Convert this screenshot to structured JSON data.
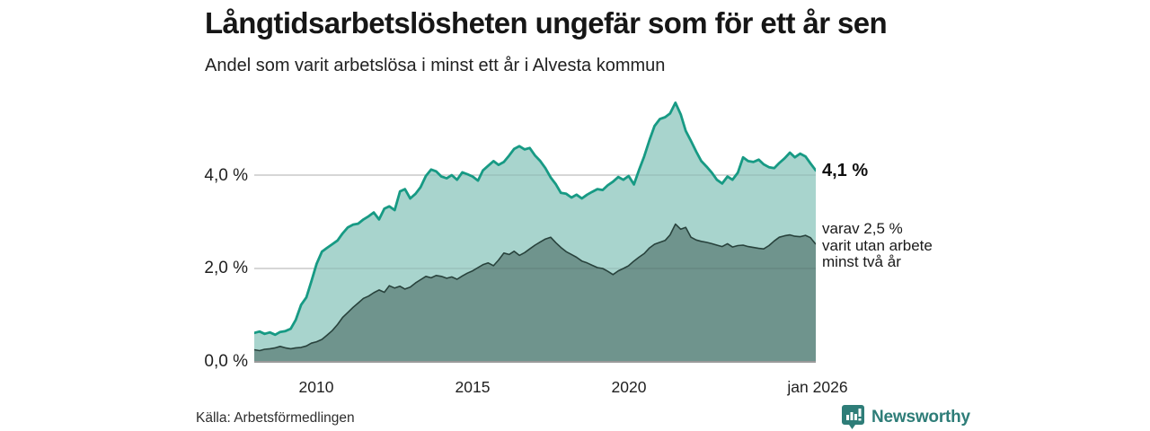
{
  "header": {
    "title": "Långtidsarbetslösheten ungefär som för ett år sen",
    "subtitle": "Andel som varit arbetslösa i minst ett år i Alvesta kommun"
  },
  "footer": {
    "source": "Källa: Arbetsförmedlingen",
    "brand": "Newsworthy",
    "brand_color": "#2e7d78"
  },
  "chart_data": {
    "type": "area",
    "title": "Långtidsarbetslösheten ungefär som för ett år sen",
    "subtitle": "Andel som varit arbetslösa i minst ett år i Alvesta kommun",
    "x_unit": "decimal_year",
    "x_range": [
      2008.0,
      2026.0
    ],
    "ylim": [
      0,
      5.9
    ],
    "grid": "horizontal",
    "colors": {
      "line_total": "#179a84",
      "fill_total": "#a8d4cd",
      "line_two_years": "#28423c",
      "fill_two_years": "#6f948d",
      "gridline": "#dcdcdc",
      "baseline": "#9a9a9a"
    },
    "yticks": [
      {
        "value": 0,
        "label": "0,0 %"
      },
      {
        "value": 2,
        "label": "2,0 %"
      },
      {
        "value": 4,
        "label": "4,0 %"
      }
    ],
    "xticks": [
      {
        "value": 2010,
        "label": "2010"
      },
      {
        "value": 2015,
        "label": "2015"
      },
      {
        "value": 2020,
        "label": "2020"
      },
      {
        "value": 2026,
        "label": "jan 2026"
      }
    ],
    "annotations": {
      "total_end_label": "4,1 %",
      "secondary_lines": [
        "varav 2,5 %",
        "varit utan arbete",
        "minst två år"
      ]
    },
    "series": [
      {
        "name": "Arbetslösa minst ett år",
        "end_value": 4.1,
        "points": [
          [
            2008.0,
            0.62
          ],
          [
            2008.17,
            0.65
          ],
          [
            2008.33,
            0.6
          ],
          [
            2008.5,
            0.63
          ],
          [
            2008.67,
            0.58
          ],
          [
            2008.83,
            0.64
          ],
          [
            2009.0,
            0.66
          ],
          [
            2009.17,
            0.71
          ],
          [
            2009.33,
            0.9
          ],
          [
            2009.5,
            1.22
          ],
          [
            2009.67,
            1.38
          ],
          [
            2009.83,
            1.72
          ],
          [
            2010.0,
            2.1
          ],
          [
            2010.17,
            2.36
          ],
          [
            2010.33,
            2.44
          ],
          [
            2010.5,
            2.52
          ],
          [
            2010.67,
            2.6
          ],
          [
            2010.83,
            2.75
          ],
          [
            2011.0,
            2.88
          ],
          [
            2011.17,
            2.94
          ],
          [
            2011.33,
            2.96
          ],
          [
            2011.5,
            3.05
          ],
          [
            2011.67,
            3.12
          ],
          [
            2011.83,
            3.2
          ],
          [
            2012.0,
            3.05
          ],
          [
            2012.17,
            3.28
          ],
          [
            2012.33,
            3.33
          ],
          [
            2012.5,
            3.25
          ],
          [
            2012.67,
            3.65
          ],
          [
            2012.83,
            3.7
          ],
          [
            2013.0,
            3.5
          ],
          [
            2013.17,
            3.6
          ],
          [
            2013.33,
            3.74
          ],
          [
            2013.5,
            3.98
          ],
          [
            2013.67,
            4.12
          ],
          [
            2013.83,
            4.08
          ],
          [
            2014.0,
            3.97
          ],
          [
            2014.17,
            3.93
          ],
          [
            2014.33,
            4.0
          ],
          [
            2014.5,
            3.9
          ],
          [
            2014.67,
            4.06
          ],
          [
            2014.83,
            4.02
          ],
          [
            2015.0,
            3.97
          ],
          [
            2015.17,
            3.88
          ],
          [
            2015.33,
            4.1
          ],
          [
            2015.5,
            4.2
          ],
          [
            2015.67,
            4.3
          ],
          [
            2015.83,
            4.22
          ],
          [
            2016.0,
            4.28
          ],
          [
            2016.17,
            4.42
          ],
          [
            2016.33,
            4.56
          ],
          [
            2016.5,
            4.62
          ],
          [
            2016.67,
            4.55
          ],
          [
            2016.83,
            4.58
          ],
          [
            2017.0,
            4.42
          ],
          [
            2017.17,
            4.3
          ],
          [
            2017.33,
            4.15
          ],
          [
            2017.5,
            3.95
          ],
          [
            2017.67,
            3.8
          ],
          [
            2017.83,
            3.62
          ],
          [
            2018.0,
            3.6
          ],
          [
            2018.17,
            3.52
          ],
          [
            2018.33,
            3.58
          ],
          [
            2018.5,
            3.5
          ],
          [
            2018.67,
            3.58
          ],
          [
            2018.83,
            3.64
          ],
          [
            2019.0,
            3.7
          ],
          [
            2019.17,
            3.68
          ],
          [
            2019.33,
            3.78
          ],
          [
            2019.5,
            3.86
          ],
          [
            2019.67,
            3.96
          ],
          [
            2019.83,
            3.9
          ],
          [
            2020.0,
            3.98
          ],
          [
            2020.17,
            3.8
          ],
          [
            2020.33,
            4.1
          ],
          [
            2020.5,
            4.4
          ],
          [
            2020.67,
            4.75
          ],
          [
            2020.83,
            5.05
          ],
          [
            2021.0,
            5.2
          ],
          [
            2021.17,
            5.24
          ],
          [
            2021.33,
            5.32
          ],
          [
            2021.5,
            5.55
          ],
          [
            2021.67,
            5.3
          ],
          [
            2021.83,
            4.95
          ],
          [
            2022.0,
            4.73
          ],
          [
            2022.17,
            4.5
          ],
          [
            2022.33,
            4.3
          ],
          [
            2022.5,
            4.18
          ],
          [
            2022.67,
            4.05
          ],
          [
            2022.83,
            3.9
          ],
          [
            2023.0,
            3.82
          ],
          [
            2023.17,
            3.97
          ],
          [
            2023.33,
            3.9
          ],
          [
            2023.5,
            4.05
          ],
          [
            2023.67,
            4.38
          ],
          [
            2023.83,
            4.3
          ],
          [
            2024.0,
            4.28
          ],
          [
            2024.17,
            4.33
          ],
          [
            2024.33,
            4.23
          ],
          [
            2024.5,
            4.17
          ],
          [
            2024.67,
            4.15
          ],
          [
            2024.83,
            4.26
          ],
          [
            2025.0,
            4.36
          ],
          [
            2025.17,
            4.48
          ],
          [
            2025.33,
            4.38
          ],
          [
            2025.5,
            4.46
          ],
          [
            2025.67,
            4.4
          ],
          [
            2025.83,
            4.25
          ],
          [
            2026.0,
            4.1
          ]
        ]
      },
      {
        "name": "Varav utan arbete minst två år",
        "end_value": 2.5,
        "points": [
          [
            2008.0,
            0.26
          ],
          [
            2008.17,
            0.24
          ],
          [
            2008.33,
            0.27
          ],
          [
            2008.5,
            0.28
          ],
          [
            2008.67,
            0.3
          ],
          [
            2008.83,
            0.33
          ],
          [
            2009.0,
            0.3
          ],
          [
            2009.17,
            0.28
          ],
          [
            2009.33,
            0.3
          ],
          [
            2009.5,
            0.31
          ],
          [
            2009.67,
            0.34
          ],
          [
            2009.83,
            0.4
          ],
          [
            2010.0,
            0.43
          ],
          [
            2010.17,
            0.48
          ],
          [
            2010.33,
            0.57
          ],
          [
            2010.5,
            0.67
          ],
          [
            2010.67,
            0.8
          ],
          [
            2010.83,
            0.95
          ],
          [
            2011.0,
            1.06
          ],
          [
            2011.17,
            1.17
          ],
          [
            2011.33,
            1.26
          ],
          [
            2011.5,
            1.36
          ],
          [
            2011.67,
            1.41
          ],
          [
            2011.83,
            1.48
          ],
          [
            2012.0,
            1.54
          ],
          [
            2012.17,
            1.49
          ],
          [
            2012.33,
            1.63
          ],
          [
            2012.5,
            1.58
          ],
          [
            2012.67,
            1.62
          ],
          [
            2012.83,
            1.56
          ],
          [
            2013.0,
            1.6
          ],
          [
            2013.17,
            1.69
          ],
          [
            2013.33,
            1.76
          ],
          [
            2013.5,
            1.83
          ],
          [
            2013.67,
            1.8
          ],
          [
            2013.83,
            1.85
          ],
          [
            2014.0,
            1.83
          ],
          [
            2014.17,
            1.79
          ],
          [
            2014.33,
            1.82
          ],
          [
            2014.5,
            1.77
          ],
          [
            2014.67,
            1.84
          ],
          [
            2014.83,
            1.9
          ],
          [
            2015.0,
            1.95
          ],
          [
            2015.17,
            2.02
          ],
          [
            2015.33,
            2.08
          ],
          [
            2015.5,
            2.12
          ],
          [
            2015.67,
            2.06
          ],
          [
            2015.83,
            2.18
          ],
          [
            2016.0,
            2.33
          ],
          [
            2016.17,
            2.3
          ],
          [
            2016.33,
            2.37
          ],
          [
            2016.5,
            2.28
          ],
          [
            2016.67,
            2.34
          ],
          [
            2016.83,
            2.42
          ],
          [
            2017.0,
            2.5
          ],
          [
            2017.17,
            2.57
          ],
          [
            2017.33,
            2.63
          ],
          [
            2017.5,
            2.67
          ],
          [
            2017.67,
            2.55
          ],
          [
            2017.83,
            2.45
          ],
          [
            2018.0,
            2.36
          ],
          [
            2018.17,
            2.3
          ],
          [
            2018.33,
            2.24
          ],
          [
            2018.5,
            2.16
          ],
          [
            2018.67,
            2.12
          ],
          [
            2018.83,
            2.07
          ],
          [
            2019.0,
            2.02
          ],
          [
            2019.17,
            2.0
          ],
          [
            2019.33,
            1.94
          ],
          [
            2019.5,
            1.87
          ],
          [
            2019.67,
            1.95
          ],
          [
            2019.83,
            2.0
          ],
          [
            2020.0,
            2.06
          ],
          [
            2020.17,
            2.16
          ],
          [
            2020.33,
            2.24
          ],
          [
            2020.5,
            2.32
          ],
          [
            2020.67,
            2.44
          ],
          [
            2020.83,
            2.52
          ],
          [
            2021.0,
            2.56
          ],
          [
            2021.17,
            2.6
          ],
          [
            2021.33,
            2.72
          ],
          [
            2021.5,
            2.95
          ],
          [
            2021.67,
            2.84
          ],
          [
            2021.83,
            2.88
          ],
          [
            2022.0,
            2.67
          ],
          [
            2022.17,
            2.61
          ],
          [
            2022.33,
            2.58
          ],
          [
            2022.5,
            2.56
          ],
          [
            2022.67,
            2.53
          ],
          [
            2022.83,
            2.5
          ],
          [
            2023.0,
            2.47
          ],
          [
            2023.17,
            2.53
          ],
          [
            2023.33,
            2.46
          ],
          [
            2023.5,
            2.49
          ],
          [
            2023.67,
            2.5
          ],
          [
            2023.83,
            2.47
          ],
          [
            2024.0,
            2.45
          ],
          [
            2024.17,
            2.43
          ],
          [
            2024.33,
            2.42
          ],
          [
            2024.5,
            2.49
          ],
          [
            2024.67,
            2.59
          ],
          [
            2024.83,
            2.67
          ],
          [
            2025.0,
            2.7
          ],
          [
            2025.17,
            2.72
          ],
          [
            2025.33,
            2.69
          ],
          [
            2025.5,
            2.68
          ],
          [
            2025.67,
            2.71
          ],
          [
            2025.83,
            2.66
          ],
          [
            2026.0,
            2.52
          ]
        ]
      }
    ]
  }
}
